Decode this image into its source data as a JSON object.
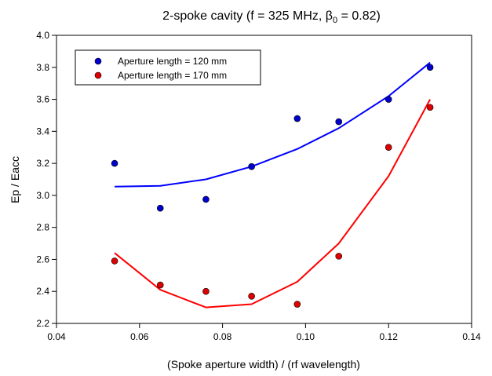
{
  "chart_data": {
    "type": "scatter",
    "title": {
      "prefix": "2-spoke cavity (f = 325 MHz, ",
      "beta_symbol": "β",
      "beta_subscript": "0",
      "suffix": " = 0.82)"
    },
    "xlabel": "(Spoke aperture width) / (rf wavelength)",
    "ylabel": "Ep / Eacc",
    "xlim": [
      0.04,
      0.14
    ],
    "ylim": [
      2.2,
      4.0
    ],
    "x_ticks": [
      "0.04",
      "0.06",
      "0.08",
      "0.10",
      "0.12",
      "0.14"
    ],
    "y_ticks": [
      "2.2",
      "2.4",
      "2.6",
      "2.8",
      "3.0",
      "3.2",
      "3.4",
      "3.6",
      "3.8",
      "4.0"
    ],
    "grid": false,
    "legend_position": "top-left",
    "series": [
      {
        "name": "Aperture length = 120 mm",
        "color": "#0000ff",
        "marker_color": "#0000cc",
        "points": {
          "x": [
            0.054,
            0.065,
            0.076,
            0.087,
            0.098,
            0.108,
            0.12,
            0.13
          ],
          "y": [
            3.2,
            2.92,
            2.975,
            3.18,
            3.48,
            3.46,
            3.6,
            3.8
          ]
        },
        "fit": {
          "x": [
            0.054,
            0.065,
            0.076,
            0.087,
            0.098,
            0.108,
            0.12,
            0.13
          ],
          "y": [
            3.055,
            3.06,
            3.1,
            3.18,
            3.29,
            3.42,
            3.62,
            3.83
          ]
        }
      },
      {
        "name": "Aperture length = 170 mm",
        "color": "#ff0000",
        "marker_color": "#dd0000",
        "points": {
          "x": [
            0.054,
            0.065,
            0.076,
            0.087,
            0.098,
            0.108,
            0.12,
            0.13
          ],
          "y": [
            2.59,
            2.44,
            2.4,
            2.37,
            2.32,
            2.62,
            3.3,
            3.55
          ]
        },
        "fit": {
          "x": [
            0.054,
            0.065,
            0.076,
            0.087,
            0.098,
            0.108,
            0.12,
            0.13
          ],
          "y": [
            2.64,
            2.41,
            2.3,
            2.32,
            2.46,
            2.7,
            3.12,
            3.6
          ]
        }
      }
    ]
  }
}
